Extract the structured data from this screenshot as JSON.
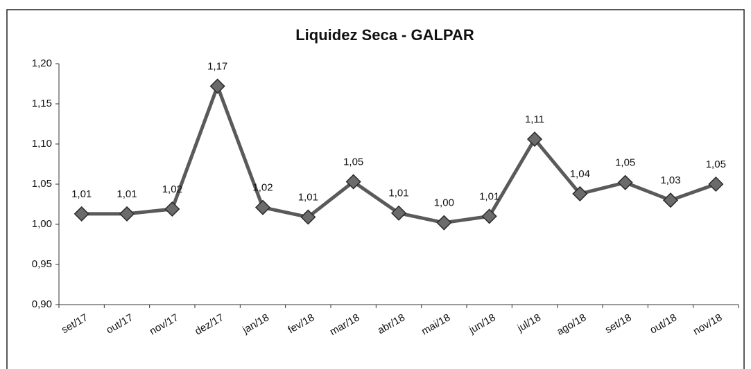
{
  "chart_data": {
    "type": "line",
    "title": "Liquidez Seca - GALPAR",
    "categories": [
      "set/17",
      "out/17",
      "nov/17",
      "dez/17",
      "jan/18",
      "fev/18",
      "mar/18",
      "abr/18",
      "mai/18",
      "jun/18",
      "jul/18",
      "ago/18",
      "set/18",
      "out/18",
      "nov/18"
    ],
    "series": [
      {
        "name": "Liquidez Seca",
        "color": "#5a5a5a",
        "values": [
          1.013,
          1.013,
          1.019,
          1.172,
          1.021,
          1.009,
          1.053,
          1.014,
          1.002,
          1.01,
          1.106,
          1.038,
          1.052,
          1.03,
          1.05
        ],
        "value_labels": [
          "1,01",
          "1,01",
          "1,02",
          "1,17",
          "1,02",
          "1,01",
          "1,05",
          "1,01",
          "1,00",
          "1,01",
          "1,11",
          "1,04",
          "1,05",
          "1,03",
          "1,05"
        ]
      }
    ],
    "ylim": [
      0.9,
      1.2
    ],
    "yticks": [
      {
        "value": 0.9,
        "label": "0,90"
      },
      {
        "value": 0.95,
        "label": "0,95"
      },
      {
        "value": 1.0,
        "label": "1,00"
      },
      {
        "value": 1.05,
        "label": "1,05"
      },
      {
        "value": 1.1,
        "label": "1,10"
      },
      {
        "value": 1.15,
        "label": "1,15"
      },
      {
        "value": 1.2,
        "label": "1,20"
      }
    ],
    "grid": false
  }
}
